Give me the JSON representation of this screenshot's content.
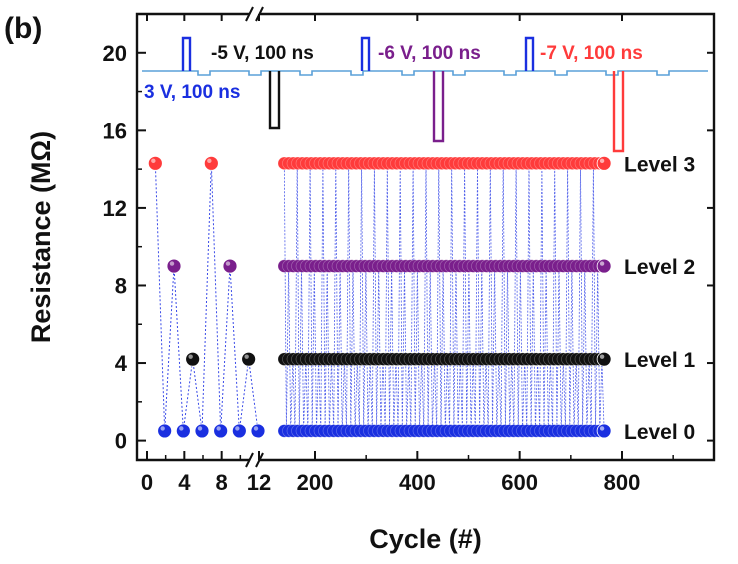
{
  "chart_data": {
    "type": "scatter",
    "panel_label": "(b)",
    "xlabel": "Cycle (#)",
    "ylabel": "Resistance (MΩ)",
    "ylim": [
      -1,
      22
    ],
    "yticks": [
      0,
      4,
      8,
      12,
      16,
      20
    ],
    "x_break": true,
    "xlim_left": [
      -0.5,
      12.5
    ],
    "xticks_left": [
      0,
      4,
      8,
      12
    ],
    "xlim_right": [
      125,
      960
    ],
    "xticks_right": [
      200,
      400,
      600,
      800
    ],
    "colors": {
      "level0": "#1a2fe0",
      "level1": "#111111",
      "level2": "#7a1f8c",
      "level3": "#ff3b3b",
      "link": "#3a4be8",
      "pulse_rest": "#5aa0d8"
    },
    "levels": [
      {
        "label": "Level 0",
        "value": 0.5,
        "color": "#1a2fe0"
      },
      {
        "label": "Level 1",
        "value": 4.2,
        "color": "#111111"
      },
      {
        "label": "Level 2",
        "value": 9.0,
        "color": "#7a1f8c"
      },
      {
        "label": "Level 3",
        "value": 14.3,
        "color": "#ff3b3b"
      }
    ],
    "left_points": {
      "x": [
        1,
        2,
        3,
        4,
        5,
        6,
        7,
        8,
        9,
        10,
        11,
        12
      ],
      "y": [
        14.3,
        0.5,
        9.0,
        0.5,
        4.2,
        0.5,
        14.3,
        0.5,
        9.0,
        0.5,
        4.2,
        0.5
      ],
      "color_level": [
        3,
        0,
        2,
        0,
        1,
        0,
        3,
        0,
        2,
        0,
        1,
        0
      ]
    },
    "right_range": [
      140,
      765
    ],
    "pulse_annotations": [
      {
        "text": "3 V, 100 ns",
        "color": "#1a2fe0"
      },
      {
        "text": "-5 V, 100 ns",
        "color": "#111111"
      },
      {
        "text": "-6 V, 100 ns",
        "color": "#7a1f8c"
      },
      {
        "text": "-7 V, 100 ns",
        "color": "#ff3b3b"
      }
    ]
  }
}
